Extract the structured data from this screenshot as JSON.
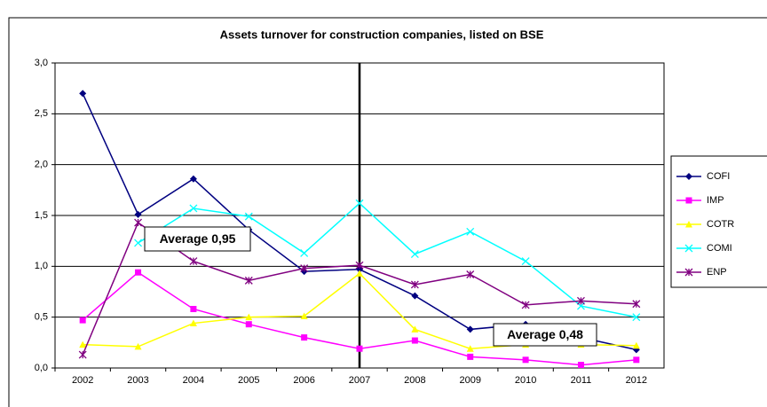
{
  "chart_data": {
    "type": "line",
    "title": "Assets turnover for construction companies, listed on BSE",
    "categories": [
      "2002",
      "2003",
      "2004",
      "2005",
      "2006",
      "2007",
      "2008",
      "2009",
      "2010",
      "2011",
      "2012"
    ],
    "series": [
      {
        "name": "COFI",
        "color": "#000080",
        "marker": "diamond",
        "values": [
          2.7,
          1.51,
          1.86,
          1.36,
          0.95,
          0.97,
          0.71,
          0.38,
          0.43,
          0.3,
          0.18
        ]
      },
      {
        "name": "IMP",
        "color": "#ff00ff",
        "marker": "square",
        "values": [
          0.47,
          0.94,
          0.58,
          0.43,
          0.3,
          0.19,
          0.27,
          0.11,
          0.08,
          0.03,
          0.08
        ]
      },
      {
        "name": "COTR",
        "color": "#ffff00",
        "marker": "triangle",
        "values": [
          0.23,
          0.21,
          0.44,
          0.5,
          0.51,
          0.93,
          0.38,
          0.19,
          0.23,
          0.23,
          0.22
        ]
      },
      {
        "name": "COMI",
        "color": "#00ffff",
        "marker": "x",
        "values": [
          null,
          1.23,
          1.57,
          1.49,
          1.13,
          1.62,
          1.12,
          1.34,
          1.05,
          0.61,
          0.5
        ]
      },
      {
        "name": "ENP",
        "color": "#800080",
        "marker": "star",
        "values": [
          0.13,
          1.43,
          1.05,
          0.86,
          0.98,
          1.01,
          0.82,
          0.92,
          0.62,
          0.66,
          0.63
        ]
      }
    ],
    "ylim": [
      0,
      3
    ],
    "yticks": [
      {
        "value": 0,
        "label": "0,0"
      },
      {
        "value": 0.5,
        "label": "0,5"
      },
      {
        "value": 1,
        "label": "1,0"
      },
      {
        "value": 1.5,
        "label": "1,5"
      },
      {
        "value": 2,
        "label": "2,0"
      },
      {
        "value": 2.5,
        "label": "2,5"
      },
      {
        "value": 3,
        "label": "3,0"
      }
    ],
    "grid": true,
    "legend": "right",
    "annotations": [
      {
        "text": "Average 0,95"
      },
      {
        "text": "Average 0,48"
      }
    ]
  }
}
